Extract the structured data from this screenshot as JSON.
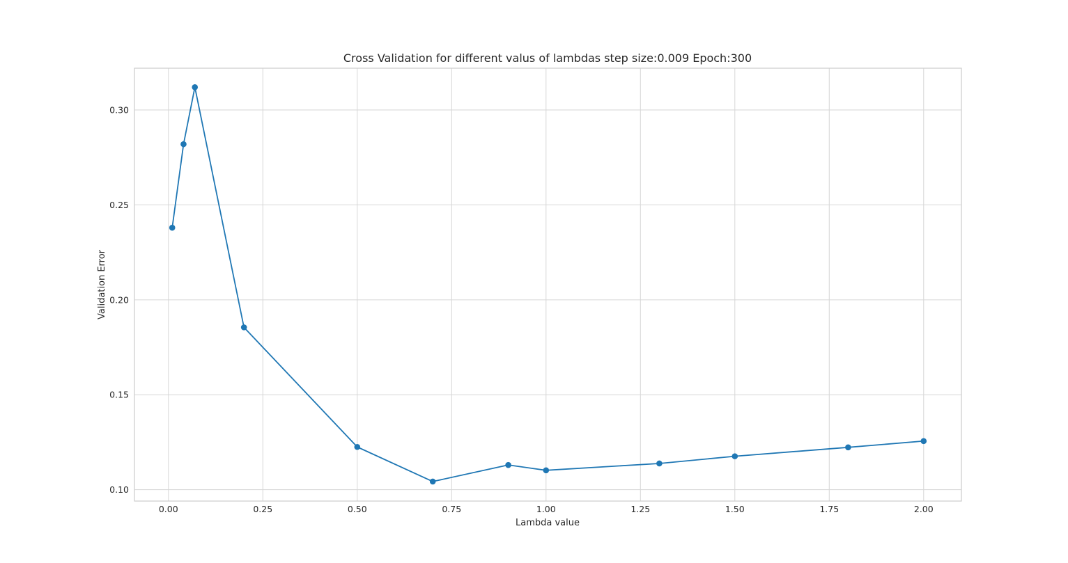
{
  "chart_data": {
    "type": "line",
    "title": "Cross Validation for different valus of lambdas step size:0.009 Epoch:300",
    "xlabel": "Lambda value",
    "ylabel": "Validation Error",
    "xlim": [
      -0.09,
      2.1
    ],
    "ylim": [
      0.094,
      0.322
    ],
    "x_ticks": [
      0.0,
      0.25,
      0.5,
      0.75,
      1.0,
      1.25,
      1.5,
      1.75,
      2.0
    ],
    "x_tick_labels": [
      "0.00",
      "0.25",
      "0.50",
      "0.75",
      "1.00",
      "1.25",
      "1.50",
      "1.75",
      "2.00"
    ],
    "y_ticks": [
      0.1,
      0.15,
      0.2,
      0.25,
      0.3
    ],
    "y_tick_labels": [
      "0.10",
      "0.15",
      "0.20",
      "0.25",
      "0.30"
    ],
    "grid": true,
    "series": [
      {
        "color": "#1f77b4",
        "marker": "circle",
        "x": [
          0.01,
          0.04,
          0.07,
          0.2,
          0.5,
          0.7,
          0.9,
          1.0,
          1.3,
          1.5,
          1.8,
          2.0
        ],
        "y": [
          0.238,
          0.282,
          0.312,
          0.1855,
          0.1225,
          0.1043,
          0.113,
          0.1102,
          0.1138,
          0.1176,
          0.1223,
          0.1256
        ]
      }
    ]
  }
}
